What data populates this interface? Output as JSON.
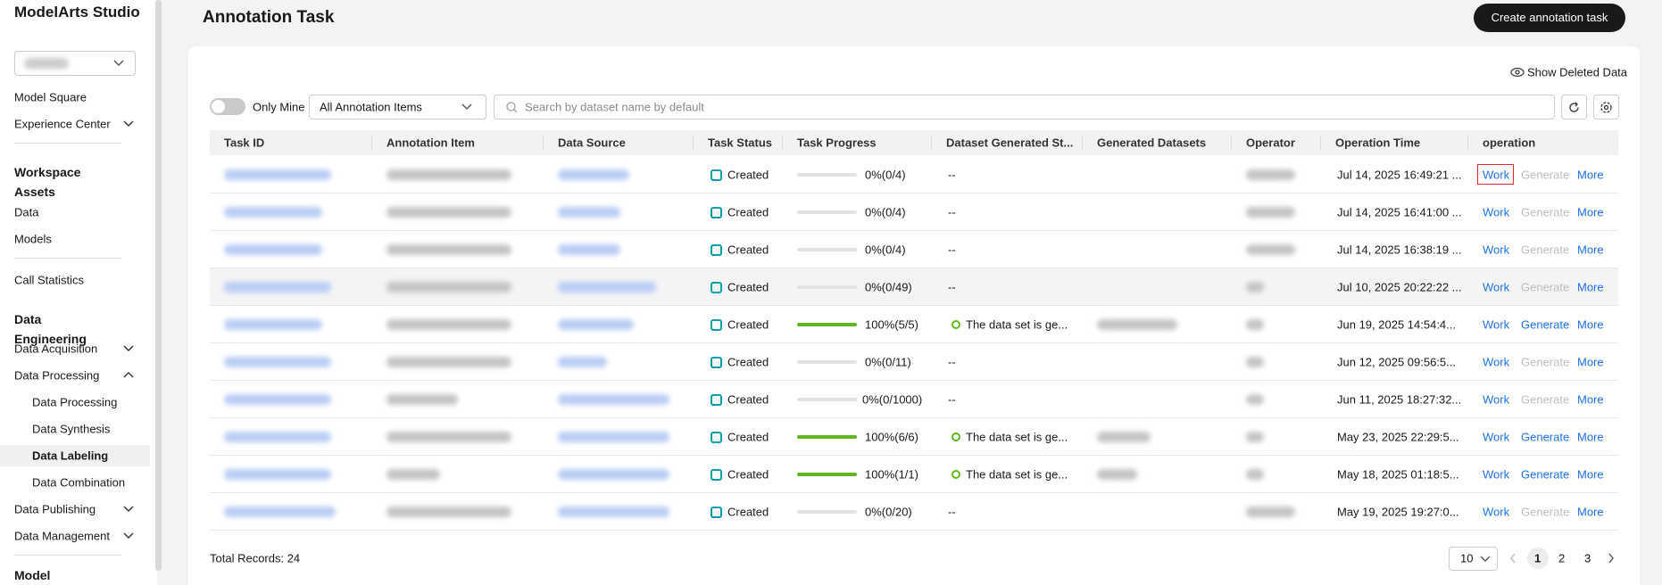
{
  "sidebar": {
    "brand": "ModelArts Studio",
    "items": [
      {
        "label": "Model Square",
        "kind": "item",
        "y": 109
      },
      {
        "label": "Experience Center",
        "kind": "item",
        "chevron": "down"
      },
      {
        "label": "Workspace Assets",
        "kind": "section"
      },
      {
        "label": "Data",
        "kind": "item"
      },
      {
        "label": "Models",
        "kind": "item"
      },
      {
        "label": "Call Statistics",
        "kind": "item"
      },
      {
        "label": "Data Engineering",
        "kind": "section"
      },
      {
        "label": "Data Acquisition",
        "kind": "item",
        "chevron": "down"
      },
      {
        "label": "Data Processing",
        "kind": "item",
        "chevron": "up"
      },
      {
        "label": "Data Processing",
        "kind": "sub"
      },
      {
        "label": "Data Synthesis",
        "kind": "sub"
      },
      {
        "label": "Data Labeling",
        "kind": "sub",
        "active": true
      },
      {
        "label": "Data Combination",
        "kind": "sub"
      },
      {
        "label": "Data Publishing",
        "kind": "item",
        "chevron": "down"
      },
      {
        "label": "Data Management",
        "kind": "item",
        "chevron": "down"
      },
      {
        "label": "Model",
        "kind": "section"
      }
    ]
  },
  "header": {
    "title": "Annotation Task",
    "create_button": "Create annotation task"
  },
  "toolbar": {
    "show_deleted": "Show Deleted Data",
    "only_mine": "Only Mine",
    "filter": "All Annotation Items",
    "search_placeholder": "Search by dataset name by default"
  },
  "table": {
    "columns": [
      "Task ID",
      "Annotation Item",
      "Data Source",
      "Task Status",
      "Task Progress",
      "Dataset Generated St...",
      "Generated Datasets",
      "Operator",
      "Operation Time",
      "operation"
    ],
    "rows": [
      {
        "status": "Created",
        "progress": 0,
        "progress_label": "0%(0/4)",
        "dataset_status": "--",
        "time": "Jul 14, 2025 16:49:21 ...",
        "ops": [
          "Work",
          "Generate",
          "More"
        ],
        "generate_enabled": false
      },
      {
        "status": "Created",
        "progress": 0,
        "progress_label": "0%(0/4)",
        "dataset_status": "--",
        "time": "Jul 14, 2025 16:41:00 ...",
        "ops": [
          "Work",
          "Generate",
          "More"
        ],
        "generate_enabled": false
      },
      {
        "status": "Created",
        "progress": 0,
        "progress_label": "0%(0/4)",
        "dataset_status": "--",
        "time": "Jul 14, 2025 16:38:19 ...",
        "ops": [
          "Work",
          "Generate",
          "More"
        ],
        "generate_enabled": false
      },
      {
        "status": "Created",
        "progress": 0,
        "progress_label": "0%(0/49)",
        "dataset_status": "--",
        "time": "Jul 10, 2025 20:22:22 ...",
        "ops": [
          "Work",
          "Generate",
          "More"
        ],
        "generate_enabled": false
      },
      {
        "status": "Created",
        "progress": 100,
        "progress_label": "100%(5/5)",
        "dataset_status": "The data set is ge...",
        "time": "Jun 19, 2025 14:54:4...",
        "ops": [
          "Work",
          "Generate",
          "More"
        ],
        "generate_enabled": true
      },
      {
        "status": "Created",
        "progress": 0,
        "progress_label": "0%(0/11)",
        "dataset_status": "--",
        "time": "Jun 12, 2025 09:56:5...",
        "ops": [
          "Work",
          "Generate",
          "More"
        ],
        "generate_enabled": false
      },
      {
        "status": "Created",
        "progress": 0,
        "progress_label": "0%(0/1000)",
        "dataset_status": "--",
        "time": "Jun 11, 2025 18:27:32...",
        "ops": [
          "Work",
          "Generate",
          "More"
        ],
        "generate_enabled": false
      },
      {
        "status": "Created",
        "progress": 100,
        "progress_label": "100%(6/6)",
        "dataset_status": "The data set is ge...",
        "time": "May 23, 2025 22:29:5...",
        "ops": [
          "Work",
          "Generate",
          "More"
        ],
        "generate_enabled": true
      },
      {
        "status": "Created",
        "progress": 100,
        "progress_label": "100%(1/1)",
        "dataset_status": "The data set is ge...",
        "time": "May 18, 2025 01:18:5...",
        "ops": [
          "Work",
          "Generate",
          "More"
        ],
        "generate_enabled": true
      },
      {
        "status": "Created",
        "progress": 0,
        "progress_label": "0%(0/20)",
        "dataset_status": "--",
        "time": "May 19, 2025 19:27:0...",
        "ops": [
          "Work",
          "Generate",
          "More"
        ],
        "generate_enabled": false
      }
    ]
  },
  "footer": {
    "total": "Total Records: 24",
    "page_size": "10",
    "pages": [
      "1",
      "2",
      "3"
    ]
  }
}
